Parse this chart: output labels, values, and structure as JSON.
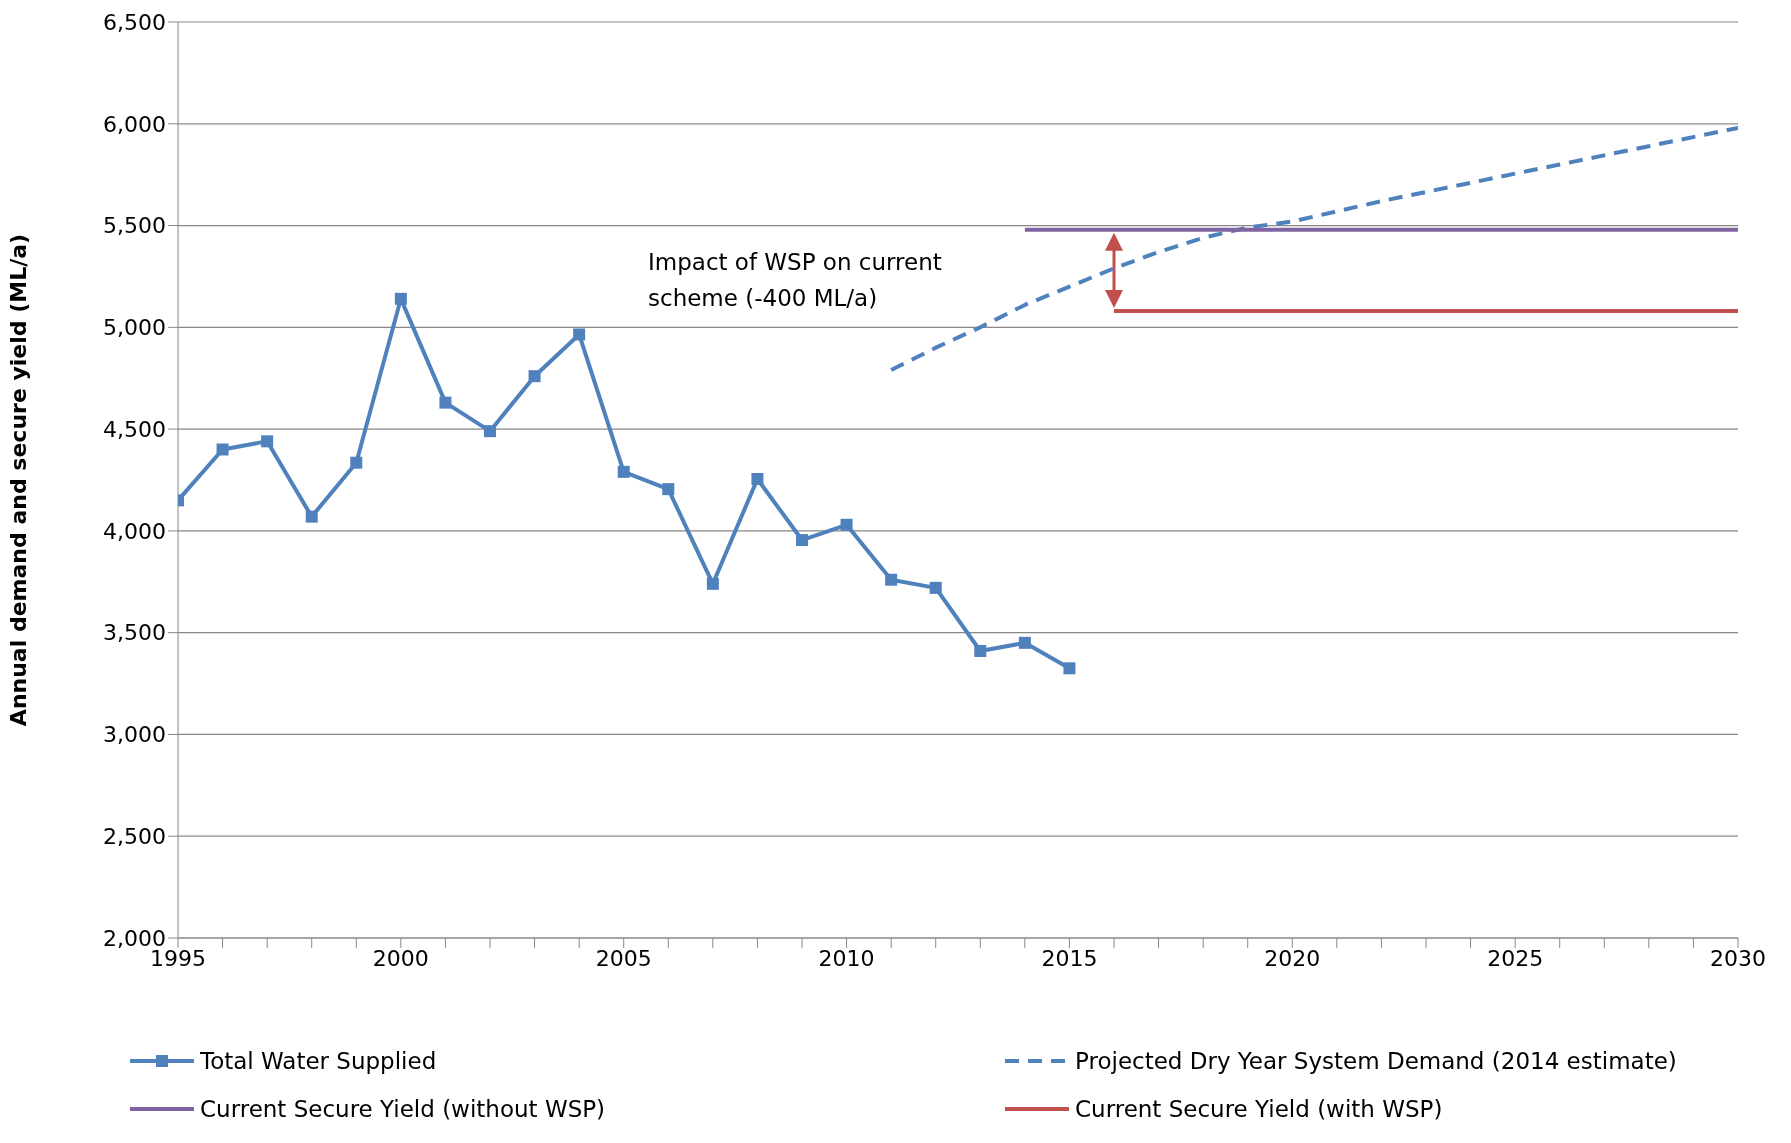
{
  "chart_data": {
    "type": "line",
    "ylabel": "Annual demand and secure yield (ML/a)",
    "annotations": [
      "Impact of WSP on current scheme (-400 ML/a)"
    ],
    "series": [
      {
        "name": "Total Water Supplied",
        "color": "#4f81bd",
        "marker": "square",
        "line_style": "solid",
        "x": [
          1995,
          1996,
          1997,
          1998,
          1999,
          2000,
          2001,
          2002,
          2003,
          2004,
          2005,
          2006,
          2007,
          2008,
          2009,
          2010,
          2011,
          2012,
          2013,
          2014,
          2015
        ],
        "values": [
          4150,
          4400,
          4440,
          4070,
          4335,
          5140,
          4630,
          4490,
          4760,
          4965,
          4290,
          4205,
          3740,
          4255,
          3955,
          4030,
          3760,
          3720,
          3410,
          3450,
          3325
        ]
      },
      {
        "name": "Projected Dry Year System Demand (2014 estimate)",
        "color": "#4f81bd",
        "marker": "none",
        "line_style": "dashed",
        "x": [
          2011,
          2012,
          2013,
          2014,
          2015,
          2016,
          2017,
          2018,
          2019,
          2020,
          2022,
          2024,
          2026,
          2028,
          2030
        ],
        "values": [
          4790,
          4900,
          5000,
          5110,
          5200,
          5290,
          5370,
          5440,
          5490,
          5520,
          5620,
          5710,
          5800,
          5890,
          5980
        ]
      },
      {
        "name": "Current Secure Yield (without WSP)",
        "color": "#8064a2",
        "marker": "none",
        "line_style": "solid",
        "x": [
          2014,
          2030
        ],
        "values": [
          5480,
          5480
        ]
      },
      {
        "name": "Current Secure Yield (with WSP)",
        "color": "#c0504d",
        "marker": "none",
        "line_style": "solid",
        "x": [
          2016,
          2030
        ],
        "values": [
          5080,
          5080
        ]
      }
    ],
    "xlim": [
      1995,
      2030
    ],
    "xticks": [
      1995,
      {
        "value": 1996,
        "label": null
      },
      {
        "value": 1997,
        "label": null
      },
      {
        "value": 1998,
        "label": null
      },
      {
        "value": 1999,
        "label": null
      },
      2000,
      {
        "value": 2001,
        "label": null
      },
      {
        "value": 2002,
        "label": null
      },
      {
        "value": 2003,
        "label": null
      },
      {
        "value": 2004,
        "label": null
      },
      2005,
      {
        "value": 2006,
        "label": null
      },
      {
        "value": 2007,
        "label": null
      },
      {
        "value": 2008,
        "label": null
      },
      {
        "value": 2009,
        "label": null
      },
      2010,
      {
        "value": 2011,
        "label": null
      },
      {
        "value": 2012,
        "label": null
      },
      {
        "value": 2013,
        "label": null
      },
      {
        "value": 2014,
        "label": null
      },
      2015,
      {
        "value": 2016,
        "label": null
      },
      {
        "value": 2017,
        "label": null
      },
      {
        "value": 2018,
        "label": null
      },
      {
        "value": 2019,
        "label": null
      },
      2020,
      {
        "value": 2021,
        "label": null
      },
      {
        "value": 2022,
        "label": null
      },
      {
        "value": 2023,
        "label": null
      },
      {
        "value": 2024,
        "label": null
      },
      2025,
      {
        "value": 2026,
        "label": null
      },
      {
        "value": 2027,
        "label": null
      },
      {
        "value": 2028,
        "label": null
      },
      {
        "value": 2029,
        "label": null
      },
      2030
    ],
    "ylim": [
      2000,
      6500
    ],
    "yticks": [
      {
        "value": 2000,
        "label": "2,000"
      },
      {
        "value": 2500,
        "label": "2,500"
      },
      {
        "value": 3000,
        "label": "3,000"
      },
      {
        "value": 3500,
        "label": "3,500"
      },
      {
        "value": 4000,
        "label": "4,000"
      },
      {
        "value": 4500,
        "label": "4,500"
      },
      {
        "value": 5000,
        "label": "5,000"
      },
      {
        "value": 5500,
        "label": "5,500"
      },
      {
        "value": 6000,
        "label": "6,000"
      },
      {
        "value": 6500,
        "label": "6,500"
      }
    ],
    "grid": "y",
    "legend": "bottom"
  }
}
